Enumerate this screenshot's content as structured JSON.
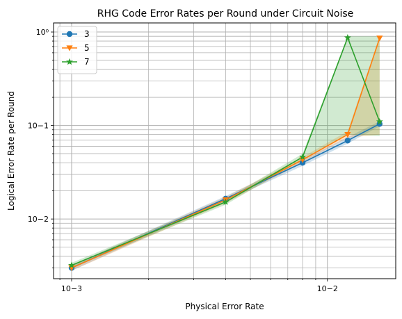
{
  "chart_data": {
    "type": "line",
    "title": "RHG Code Error Rates per Round under Circuit Noise",
    "xlabel": "Physical Error Rate",
    "ylabel": "Logical Error Rate per Round",
    "xscale": "log",
    "yscale": "log",
    "xlim": [
      0.00085,
      0.0185
    ],
    "ylim": [
      0.0023,
      1.25
    ],
    "grid": "both (major and minor)",
    "legend_placement": "top-left",
    "x": [
      0.001,
      0.004,
      0.008,
      0.012,
      0.016
    ],
    "x_tick_labels": [
      "10−3",
      "10−2"
    ],
    "y_tick_labels": [
      "10−2",
      "10−1",
      "10⁰"
    ],
    "series": [
      {
        "name": "3",
        "color": "#1f77b4",
        "marker": "circle",
        "values": [
          0.003,
          0.0165,
          0.04,
          0.069,
          0.104
        ],
        "band_low": [
          0.0028,
          0.0155,
          0.037,
          0.064,
          0.098
        ],
        "band_high": [
          0.0032,
          0.0176,
          0.043,
          0.075,
          0.111
        ]
      },
      {
        "name": "5",
        "color": "#ff7f0e",
        "marker": "triangle-down",
        "values": [
          0.003,
          0.016,
          0.043,
          0.08,
          0.86
        ],
        "band_low": [
          0.0028,
          0.0148,
          0.04,
          0.074,
          0.08
        ],
        "band_high": [
          0.0032,
          0.0172,
          0.046,
          0.087,
          0.9
        ]
      },
      {
        "name": "7",
        "color": "#2ca02c",
        "marker": "star",
        "values": [
          0.0032,
          0.0152,
          0.046,
          0.87,
          0.11
        ],
        "band_low": [
          0.003,
          0.0142,
          0.043,
          0.08,
          0.077
        ],
        "band_high": [
          0.0034,
          0.0163,
          0.05,
          0.9,
          0.9
        ]
      }
    ]
  }
}
